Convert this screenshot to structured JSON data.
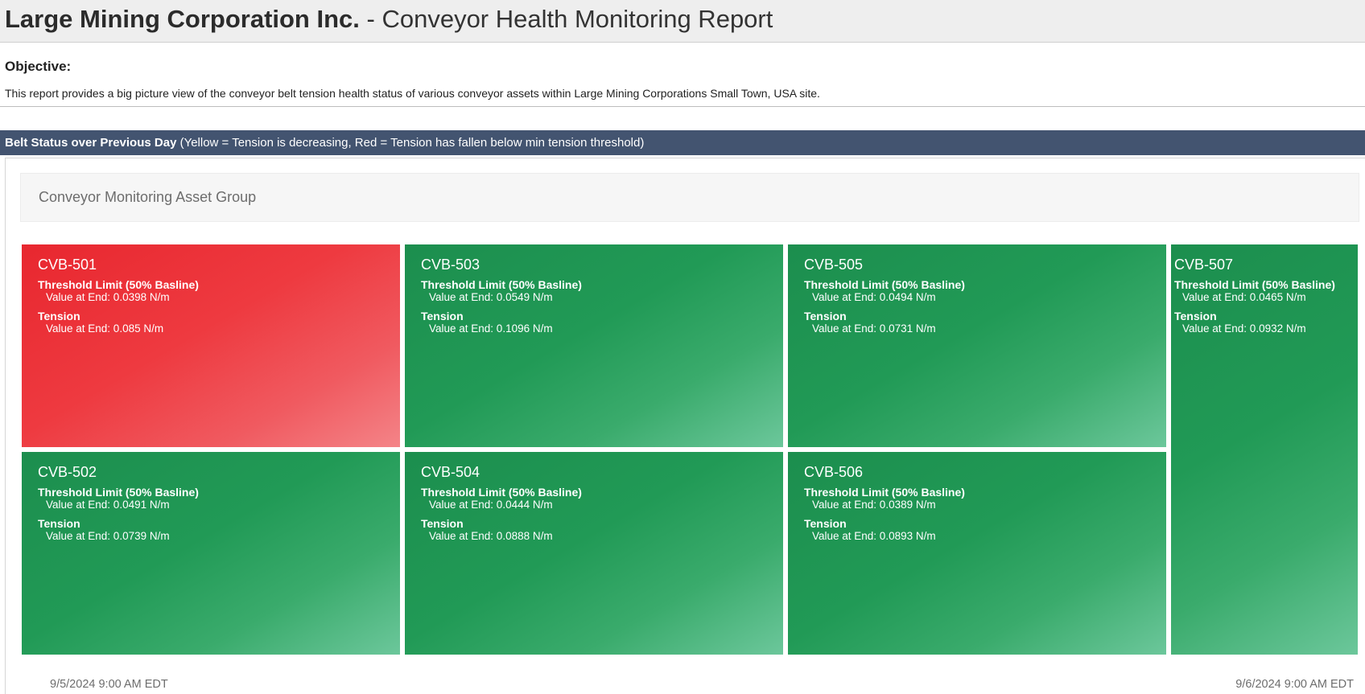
{
  "header": {
    "company": "Large Mining Corporation Inc.",
    "separator": " - ",
    "report_title": "Conveyor Health Monitoring Report"
  },
  "objective": {
    "heading": "Objective:",
    "text": "This report provides a big picture view of the conveyor belt tension health status of various conveyor assets within Large Mining Corporations Small Town, USA site."
  },
  "status_bar": {
    "title": "Belt Status over Previous Day",
    "legend": " (Yellow = Tension is decreasing, Red = Tension has fallen below min tension threshold)"
  },
  "asset_group": {
    "title": "Conveyor Monitoring Asset Group"
  },
  "status_colors": {
    "green": "#219a56",
    "red": "#ee3a40",
    "yellow": "#f2c200"
  },
  "tiles": [
    {
      "name": "CVB-501",
      "status": "red",
      "threshold_label": "Threshold Limit (50% Basline)",
      "threshold_value": "Value at End: 0.0398 N/m",
      "tension_label": "Tension",
      "tension_value": "Value at End: 0.085 N/m"
    },
    {
      "name": "CVB-503",
      "status": "green",
      "threshold_label": "Threshold Limit (50% Basline)",
      "threshold_value": "Value at End: 0.0549 N/m",
      "tension_label": "Tension",
      "tension_value": "Value at End: 0.1096 N/m"
    },
    {
      "name": "CVB-505",
      "status": "green",
      "threshold_label": "Threshold Limit (50% Basline)",
      "threshold_value": "Value at End: 0.0494 N/m",
      "tension_label": "Tension",
      "tension_value": "Value at End: 0.0731 N/m"
    },
    {
      "name": "CVB-507",
      "status": "green",
      "threshold_label": "Threshold Limit (50% Basline)",
      "threshold_value": "Value at End: 0.0465 N/m",
      "tension_label": "Tension",
      "tension_value": "Value at End: 0.0932 N/m"
    },
    {
      "name": "CVB-502",
      "status": "green",
      "threshold_label": "Threshold Limit (50% Basline)",
      "threshold_value": "Value at End: 0.0491 N/m",
      "tension_label": "Tension",
      "tension_value": "Value at End: 0.0739 N/m"
    },
    {
      "name": "CVB-504",
      "status": "green",
      "threshold_label": "Threshold Limit (50% Basline)",
      "threshold_value": "Value at End: 0.0444 N/m",
      "tension_label": "Tension",
      "tension_value": "Value at End: 0.0888 N/m"
    },
    {
      "name": "CVB-506",
      "status": "green",
      "threshold_label": "Threshold Limit (50% Basline)",
      "threshold_value": "Value at End: 0.0389 N/m",
      "tension_label": "Tension",
      "tension_value": "Value at End: 0.0893 N/m"
    }
  ],
  "timeline": {
    "start": "9/5/2024 9:00 AM  EDT",
    "end": "9/6/2024 9:00 AM  EDT"
  }
}
